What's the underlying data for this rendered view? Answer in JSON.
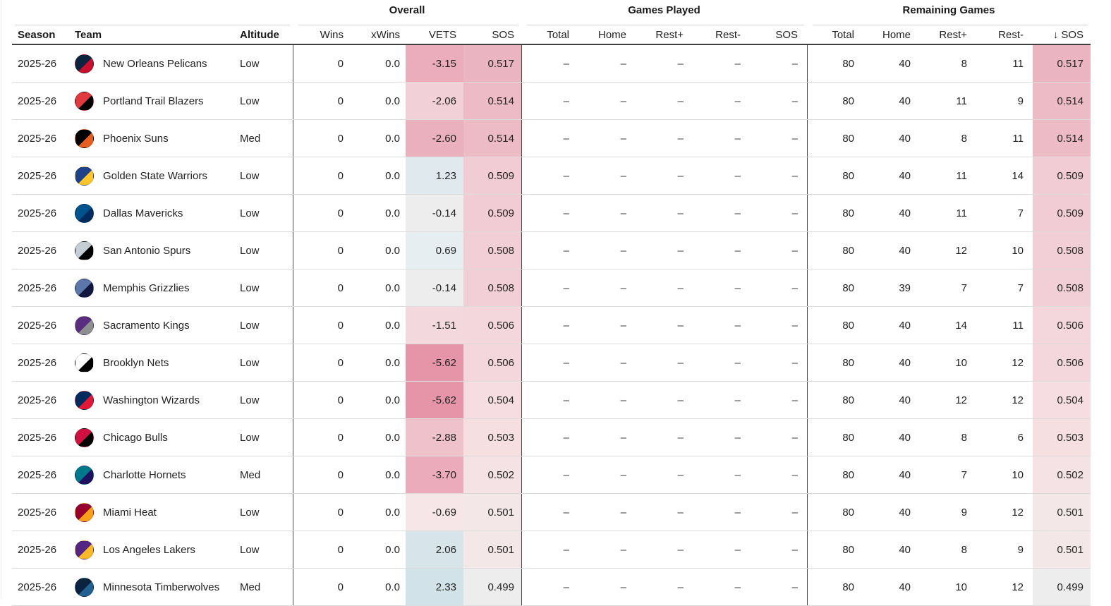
{
  "header": {
    "groups": [
      {
        "label": ""
      },
      {
        "label": "Overall"
      },
      {
        "label": "Games Played"
      },
      {
        "label": "Remaining Games"
      }
    ],
    "cols": {
      "season": "Season",
      "team": "Team",
      "altitude": "Altitude",
      "wins": "Wins",
      "xwins": "xWins",
      "vets": "VETS",
      "sos": "SOS",
      "gp_total": "Total",
      "gp_home": "Home",
      "gp_rest_plus": "Rest+",
      "gp_rest_minus": "Rest-",
      "gp_sos": "SOS",
      "rg_total": "Total",
      "rg_home": "Home",
      "rg_rest_plus": "Rest+",
      "rg_rest_minus": "Rest-",
      "rg_sos": "SOS"
    },
    "sort": {
      "column": "rg_sos",
      "direction": "desc",
      "icon": "↓"
    }
  },
  "rows": [
    {
      "season": "2025-26",
      "team": "New Orleans Pelicans",
      "altitude": "Low",
      "wins": "0",
      "xwins": "0.0",
      "vets": "-3.15",
      "vets_color": "#ebadbb",
      "overall_sos": "0.517",
      "sos_color": "#eab5c1",
      "gp_total": "–",
      "gp_home": "–",
      "gp_rest_plus": "–",
      "gp_rest_minus": "–",
      "gp_sos": "–",
      "rg_total": "80",
      "rg_home": "40",
      "rg_rest_plus": "8",
      "rg_rest_minus": "11",
      "rg_sos": "0.517",
      "logo_primary": "#0C2340",
      "logo_secondary": "#C8102E"
    },
    {
      "season": "2025-26",
      "team": "Portland Trail Blazers",
      "altitude": "Low",
      "wins": "0",
      "xwins": "0.0",
      "vets": "-2.06",
      "vets_color": "#f2d0d7",
      "overall_sos": "0.514",
      "sos_color": "#ecbbc6",
      "gp_total": "–",
      "gp_home": "–",
      "gp_rest_plus": "–",
      "gp_rest_minus": "–",
      "gp_sos": "–",
      "rg_total": "80",
      "rg_home": "40",
      "rg_rest_plus": "11",
      "rg_rest_minus": "9",
      "rg_sos": "0.514",
      "logo_primary": "#E03A3E",
      "logo_secondary": "#000000"
    },
    {
      "season": "2025-26",
      "team": "Phoenix Suns",
      "altitude": "Med",
      "wins": "0",
      "xwins": "0.0",
      "vets": "-2.60",
      "vets_color": "#ebb0bd",
      "overall_sos": "0.514",
      "sos_color": "#ecbbc6",
      "gp_total": "–",
      "gp_home": "–",
      "gp_rest_plus": "–",
      "gp_rest_minus": "–",
      "gp_sos": "–",
      "rg_total": "80",
      "rg_home": "40",
      "rg_rest_plus": "8",
      "rg_rest_minus": "11",
      "rg_sos": "0.514",
      "logo_primary": "#000000",
      "logo_secondary": "#E56020"
    },
    {
      "season": "2025-26",
      "team": "Golden State Warriors",
      "altitude": "Low",
      "wins": "0",
      "xwins": "0.0",
      "vets": "1.23",
      "vets_color": "#dfe9ee",
      "overall_sos": "0.509",
      "sos_color": "#f1ccd4",
      "gp_total": "–",
      "gp_home": "–",
      "gp_rest_plus": "–",
      "gp_rest_minus": "–",
      "gp_sos": "–",
      "rg_total": "80",
      "rg_home": "40",
      "rg_rest_plus": "11",
      "rg_rest_minus": "14",
      "rg_sos": "0.509",
      "logo_primary": "#1D428A",
      "logo_secondary": "#FFC72C"
    },
    {
      "season": "2025-26",
      "team": "Dallas Mavericks",
      "altitude": "Low",
      "wins": "0",
      "xwins": "0.0",
      "vets": "-0.14",
      "vets_color": "#eeedee",
      "overall_sos": "0.509",
      "sos_color": "#f1ccd4",
      "gp_total": "–",
      "gp_home": "–",
      "gp_rest_plus": "–",
      "gp_rest_minus": "–",
      "gp_sos": "–",
      "rg_total": "80",
      "rg_home": "40",
      "rg_rest_plus": "11",
      "rg_rest_minus": "7",
      "rg_sos": "0.509",
      "logo_primary": "#00538C",
      "logo_secondary": "#002B5E"
    },
    {
      "season": "2025-26",
      "team": "San Antonio Spurs",
      "altitude": "Low",
      "wins": "0",
      "xwins": "0.0",
      "vets": "0.69",
      "vets_color": "#e7eef1",
      "overall_sos": "0.508",
      "sos_color": "#f2cfd6",
      "gp_total": "–",
      "gp_home": "–",
      "gp_rest_plus": "–",
      "gp_rest_minus": "–",
      "gp_sos": "–",
      "rg_total": "80",
      "rg_home": "40",
      "rg_rest_plus": "12",
      "rg_rest_minus": "10",
      "rg_sos": "0.508",
      "logo_primary": "#C4CED4",
      "logo_secondary": "#000000"
    },
    {
      "season": "2025-26",
      "team": "Memphis Grizzlies",
      "altitude": "Low",
      "wins": "0",
      "xwins": "0.0",
      "vets": "-0.14",
      "vets_color": "#eeedee",
      "overall_sos": "0.508",
      "sos_color": "#f2cfd6",
      "gp_total": "–",
      "gp_home": "–",
      "gp_rest_plus": "–",
      "gp_rest_minus": "–",
      "gp_sos": "–",
      "rg_total": "80",
      "rg_home": "39",
      "rg_rest_plus": "7",
      "rg_rest_minus": "7",
      "rg_sos": "0.508",
      "logo_primary": "#5D76A9",
      "logo_secondary": "#12173F"
    },
    {
      "season": "2025-26",
      "team": "Sacramento Kings",
      "altitude": "Low",
      "wins": "0",
      "xwins": "0.0",
      "vets": "-1.51",
      "vets_color": "#f3d8dd",
      "overall_sos": "0.506",
      "sos_color": "#f3d7dc",
      "gp_total": "–",
      "gp_home": "–",
      "gp_rest_plus": "–",
      "gp_rest_minus": "–",
      "gp_sos": "–",
      "rg_total": "80",
      "rg_home": "40",
      "rg_rest_plus": "14",
      "rg_rest_minus": "11",
      "rg_sos": "0.506",
      "logo_primary": "#5A2D81",
      "logo_secondary": "#8E9090"
    },
    {
      "season": "2025-26",
      "team": "Brooklyn Nets",
      "altitude": "Low",
      "wins": "0",
      "xwins": "0.0",
      "vets": "-5.62",
      "vets_color": "#e695a8",
      "overall_sos": "0.506",
      "sos_color": "#f3d7dc",
      "gp_total": "–",
      "gp_home": "–",
      "gp_rest_plus": "–",
      "gp_rest_minus": "–",
      "gp_sos": "–",
      "rg_total": "80",
      "rg_home": "40",
      "rg_rest_plus": "10",
      "rg_rest_minus": "12",
      "rg_sos": "0.506",
      "logo_primary": "#FFFFFF",
      "logo_secondary": "#000000"
    },
    {
      "season": "2025-26",
      "team": "Washington Wizards",
      "altitude": "Low",
      "wins": "0",
      "xwins": "0.0",
      "vets": "-5.62",
      "vets_color": "#e695a8",
      "overall_sos": "0.504",
      "sos_color": "#f5dde1",
      "gp_total": "–",
      "gp_home": "–",
      "gp_rest_plus": "–",
      "gp_rest_minus": "–",
      "gp_sos": "–",
      "rg_total": "80",
      "rg_home": "40",
      "rg_rest_plus": "12",
      "rg_rest_minus": "12",
      "rg_sos": "0.504",
      "logo_primary": "#002B5C",
      "logo_secondary": "#E31837"
    },
    {
      "season": "2025-26",
      "team": "Chicago Bulls",
      "altitude": "Low",
      "wins": "0",
      "xwins": "0.0",
      "vets": "-2.88",
      "vets_color": "#eec1cb",
      "overall_sos": "0.503",
      "sos_color": "#f5dfe1",
      "gp_total": "–",
      "gp_home": "–",
      "gp_rest_plus": "–",
      "gp_rest_minus": "–",
      "gp_sos": "–",
      "rg_total": "80",
      "rg_home": "40",
      "rg_rest_plus": "8",
      "rg_rest_minus": "6",
      "rg_sos": "0.503",
      "logo_primary": "#CE1141",
      "logo_secondary": "#000000"
    },
    {
      "season": "2025-26",
      "team": "Charlotte Hornets",
      "altitude": "Med",
      "wins": "0",
      "xwins": "0.0",
      "vets": "-3.70",
      "vets_color": "#ecabba",
      "overall_sos": "0.502",
      "sos_color": "#f5e2e4",
      "gp_total": "–",
      "gp_home": "–",
      "gp_rest_plus": "–",
      "gp_rest_minus": "–",
      "gp_sos": "–",
      "rg_total": "80",
      "rg_home": "40",
      "rg_rest_plus": "7",
      "rg_rest_minus": "10",
      "rg_sos": "0.502",
      "logo_primary": "#00788C",
      "logo_secondary": "#1D1160"
    },
    {
      "season": "2025-26",
      "team": "Miami Heat",
      "altitude": "Low",
      "wins": "0",
      "xwins": "0.0",
      "vets": "-0.69",
      "vets_color": "#f6e6e8",
      "overall_sos": "0.501",
      "sos_color": "#f4e7e8",
      "gp_total": "–",
      "gp_home": "–",
      "gp_rest_plus": "–",
      "gp_rest_minus": "–",
      "gp_sos": "–",
      "rg_total": "80",
      "rg_home": "40",
      "rg_rest_plus": "9",
      "rg_rest_minus": "12",
      "rg_sos": "0.501",
      "logo_primary": "#98002E",
      "logo_secondary": "#F9A01B"
    },
    {
      "season": "2025-26",
      "team": "Los Angeles Lakers",
      "altitude": "Low",
      "wins": "0",
      "xwins": "0.0",
      "vets": "2.06",
      "vets_color": "#d7e5eb",
      "overall_sos": "0.501",
      "sos_color": "#f4e7e8",
      "gp_total": "–",
      "gp_home": "–",
      "gp_rest_plus": "–",
      "gp_rest_minus": "–",
      "gp_sos": "–",
      "rg_total": "80",
      "rg_home": "40",
      "rg_rest_plus": "8",
      "rg_rest_minus": "9",
      "rg_sos": "0.501",
      "logo_primary": "#552583",
      "logo_secondary": "#FDB927"
    },
    {
      "season": "2025-26",
      "team": "Minnesota Timberwolves",
      "altitude": "Med",
      "wins": "0",
      "xwins": "0.0",
      "vets": "2.33",
      "vets_color": "#d2e2e9",
      "overall_sos": "0.499",
      "sos_color": "#eeedee",
      "gp_total": "–",
      "gp_home": "–",
      "gp_rest_plus": "–",
      "gp_rest_minus": "–",
      "gp_sos": "–",
      "rg_total": "80",
      "rg_home": "40",
      "rg_rest_plus": "10",
      "rg_rest_minus": "12",
      "rg_sos": "0.499",
      "logo_primary": "#0C2340",
      "logo_secondary": "#236192"
    }
  ]
}
